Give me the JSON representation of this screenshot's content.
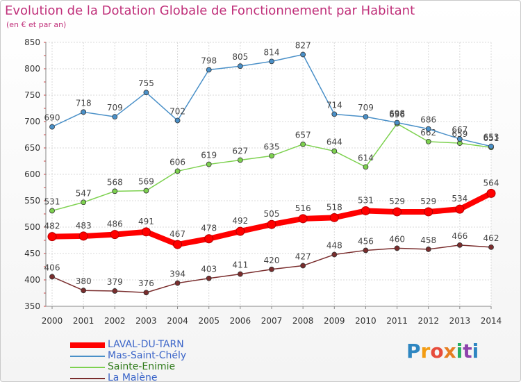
{
  "header": {
    "title": "Evolution de la Dotation Globale de Fonctionnement par Habitant",
    "subtitle": "(en € et par an)"
  },
  "brand": {
    "letters": [
      "P",
      "r",
      "o",
      "x",
      "i",
      "t",
      "i"
    ],
    "colors": [
      "#2e86c1",
      "#f39c12",
      "#e74c3c",
      "#e67e22",
      "#27ae60",
      "#8e44ad",
      "#2e86c1"
    ]
  },
  "chart_data": {
    "type": "line",
    "x": [
      "2000",
      "2001",
      "2002",
      "2003",
      "2004",
      "2005",
      "2006",
      "2007",
      "2008",
      "2009",
      "2010",
      "2011",
      "2012",
      "2013",
      "2014"
    ],
    "ylim": [
      350,
      850
    ],
    "yticks": [
      350,
      400,
      450,
      500,
      550,
      600,
      650,
      700,
      750,
      800,
      850
    ],
    "grid": true,
    "legend_position": "bottom-left",
    "series": [
      {
        "name": "LAVAL-DU-TARN",
        "color": "#ff0000",
        "values": [
          482,
          483,
          486,
          491,
          467,
          478,
          492,
          505,
          516,
          518,
          531,
          529,
          529,
          534,
          564
        ],
        "labels": [
          "482",
          "483",
          "486",
          "491",
          "467",
          "478",
          "492",
          "505",
          "516",
          "518",
          "531",
          "529",
          "529",
          "534",
          "564"
        ]
      },
      {
        "name": "Mas-Saint-Chély",
        "color": "#4a90c8",
        "values": [
          690,
          718,
          709,
          755,
          702,
          798,
          805,
          814,
          827,
          714,
          709,
          698,
          686,
          667,
          653
        ],
        "labels": [
          "690",
          "718",
          "709",
          "755",
          "702",
          "798",
          "805",
          "814",
          "827",
          "714",
          "709",
          "698",
          "686",
          "667",
          "653"
        ]
      },
      {
        "name": "Sainte-Enimie",
        "color": "#7dd14f",
        "values": [
          531,
          547,
          568,
          569,
          606,
          619,
          627,
          635,
          657,
          644,
          614,
          696,
          662,
          659,
          651
        ],
        "labels": [
          "531",
          "547",
          "568",
          "569",
          "606",
          "619",
          "627",
          "635",
          "657",
          "644",
          "614",
          "696",
          "662",
          "659",
          "651"
        ]
      },
      {
        "name": "La Malène",
        "color": "#7a2d2d",
        "values": [
          406,
          380,
          379,
          376,
          394,
          403,
          411,
          420,
          427,
          448,
          456,
          460,
          458,
          466,
          462
        ],
        "labels": [
          "406",
          "380",
          "379",
          "376",
          "394",
          "403",
          "411",
          "420",
          "427",
          "448",
          "456",
          "460",
          "458",
          "466",
          "462"
        ]
      }
    ]
  }
}
